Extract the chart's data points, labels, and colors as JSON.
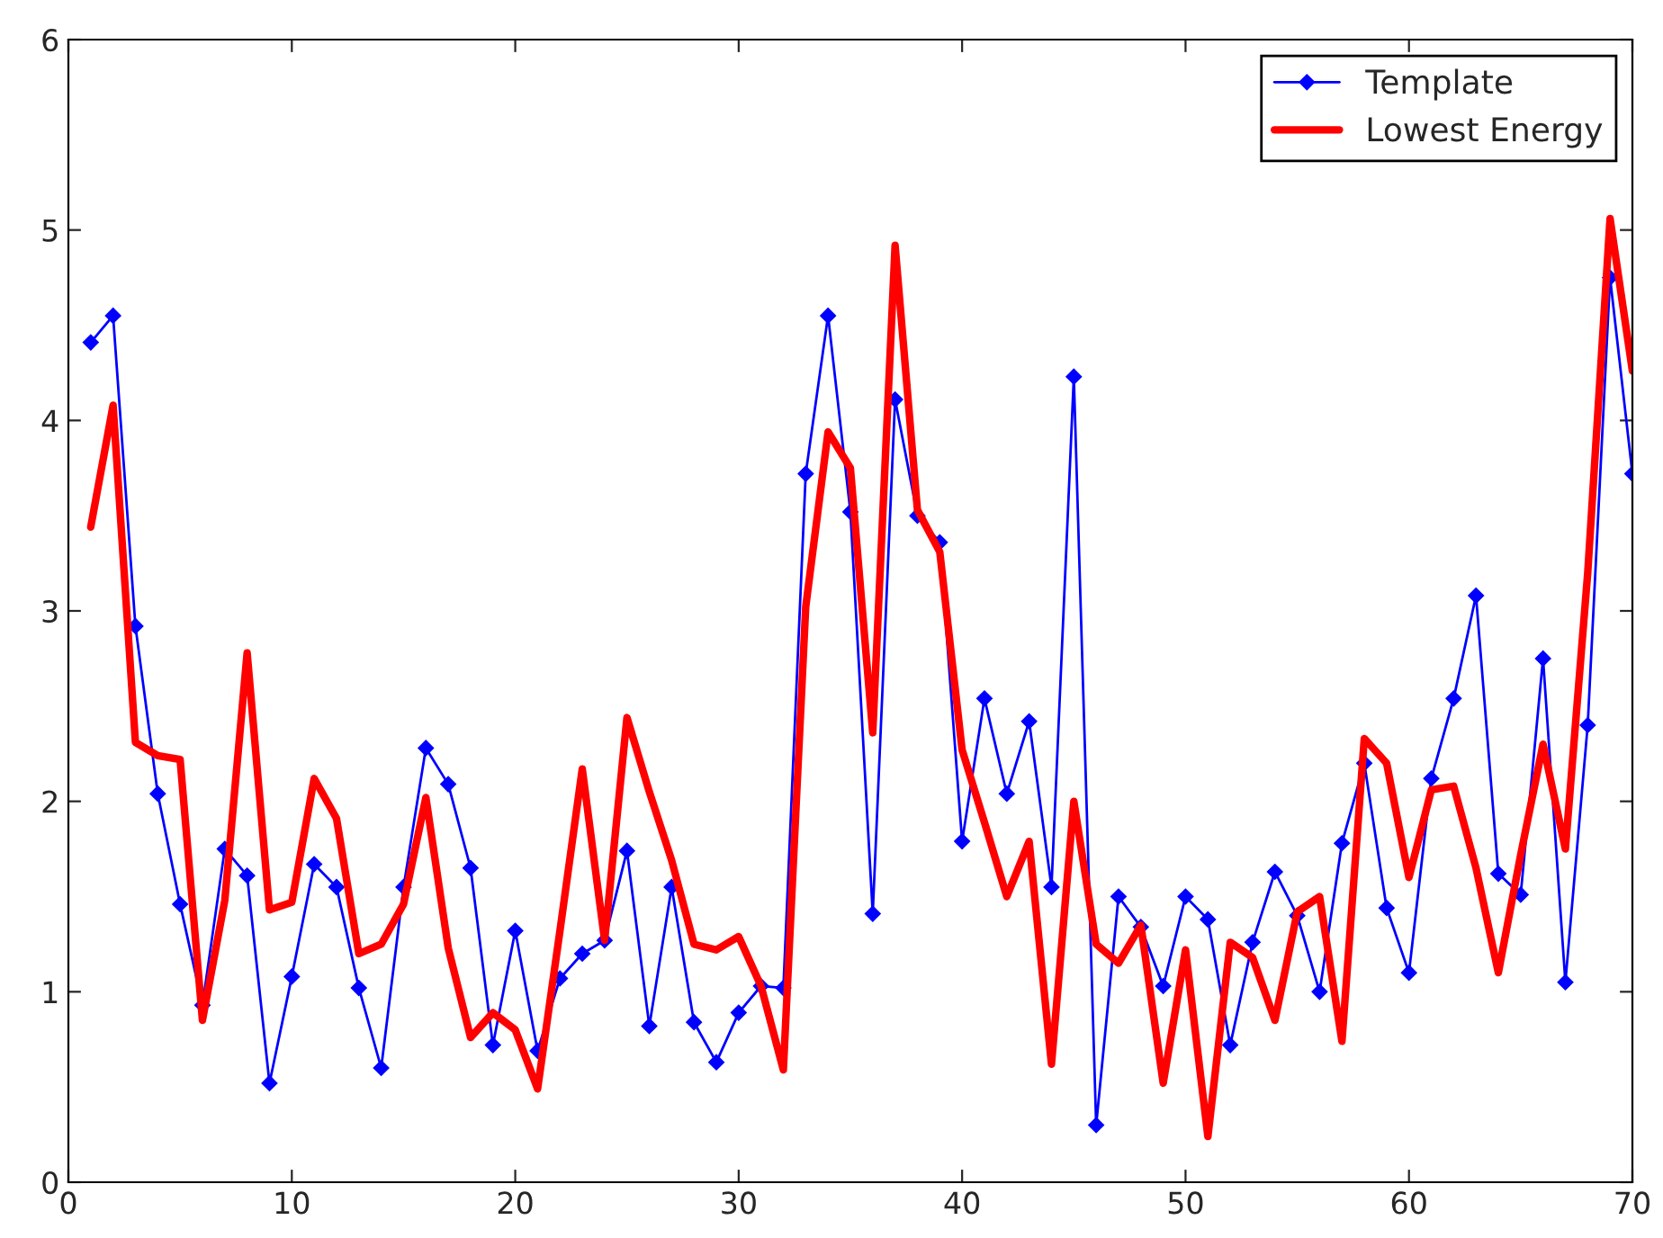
{
  "chart_data": {
    "type": "line",
    "x": [
      1,
      2,
      3,
      4,
      5,
      6,
      7,
      8,
      9,
      10,
      11,
      12,
      13,
      14,
      15,
      16,
      17,
      18,
      19,
      20,
      21,
      22,
      23,
      24,
      25,
      26,
      27,
      28,
      29,
      30,
      31,
      32,
      33,
      34,
      35,
      36,
      37,
      38,
      39,
      40,
      41,
      42,
      43,
      44,
      45,
      46,
      47,
      48,
      49,
      50,
      51,
      52,
      53,
      54,
      55,
      56,
      57,
      58,
      59,
      60,
      61,
      62,
      63,
      64,
      65,
      66,
      67,
      68,
      69,
      70
    ],
    "series": [
      {
        "name": "Template",
        "color": "#0000ff",
        "marker": "diamond",
        "values": [
          4.41,
          4.55,
          2.92,
          2.04,
          1.46,
          0.93,
          1.75,
          1.61,
          0.52,
          1.08,
          1.67,
          1.55,
          1.02,
          0.6,
          1.55,
          2.28,
          2.09,
          1.65,
          0.72,
          1.32,
          0.69,
          1.07,
          1.2,
          1.27,
          1.74,
          0.82,
          1.55,
          0.84,
          0.63,
          0.89,
          1.03,
          1.02,
          3.72,
          4.55,
          3.52,
          1.41,
          4.11,
          3.5,
          3.36,
          1.79,
          2.54,
          2.04,
          2.42,
          1.55,
          4.23,
          0.3,
          1.5,
          1.34,
          1.03,
          1.5,
          1.38,
          0.72,
          1.26,
          1.63,
          1.4,
          1.0,
          1.78,
          2.2,
          1.44,
          1.1,
          2.12,
          2.54,
          3.08,
          1.62,
          1.51,
          2.75,
          1.05,
          2.4,
          4.75,
          3.72
        ]
      },
      {
        "name": "Lowest Energy",
        "color": "#ff0000",
        "marker": "none",
        "values": [
          3.44,
          4.08,
          2.31,
          2.24,
          2.22,
          0.85,
          1.48,
          2.78,
          1.43,
          1.47,
          2.12,
          1.91,
          1.2,
          1.25,
          1.46,
          2.02,
          1.23,
          0.76,
          0.89,
          0.8,
          0.49,
          1.32,
          2.17,
          1.27,
          2.44,
          2.05,
          1.69,
          1.25,
          1.22,
          1.29,
          1.03,
          0.59,
          3.02,
          3.94,
          3.75,
          2.36,
          4.92,
          3.53,
          3.31,
          2.27,
          1.89,
          1.5,
          1.79,
          0.62,
          2.0,
          1.25,
          1.15,
          1.35,
          0.52,
          1.22,
          0.24,
          1.26,
          1.18,
          0.85,
          1.42,
          1.5,
          0.74,
          2.33,
          2.2,
          1.6,
          2.06,
          2.08,
          1.65,
          1.1,
          1.72,
          2.3,
          1.75,
          3.2,
          5.06,
          4.26
        ]
      }
    ],
    "xlim": [
      0,
      70
    ],
    "xticks": [
      0,
      10,
      20,
      30,
      40,
      50,
      60,
      70
    ],
    "ylim": [
      0,
      6
    ],
    "yticks": [
      0,
      1,
      2,
      3,
      4,
      5,
      6
    ],
    "grid": false,
    "legend": "top right",
    "line_style": "solid"
  }
}
